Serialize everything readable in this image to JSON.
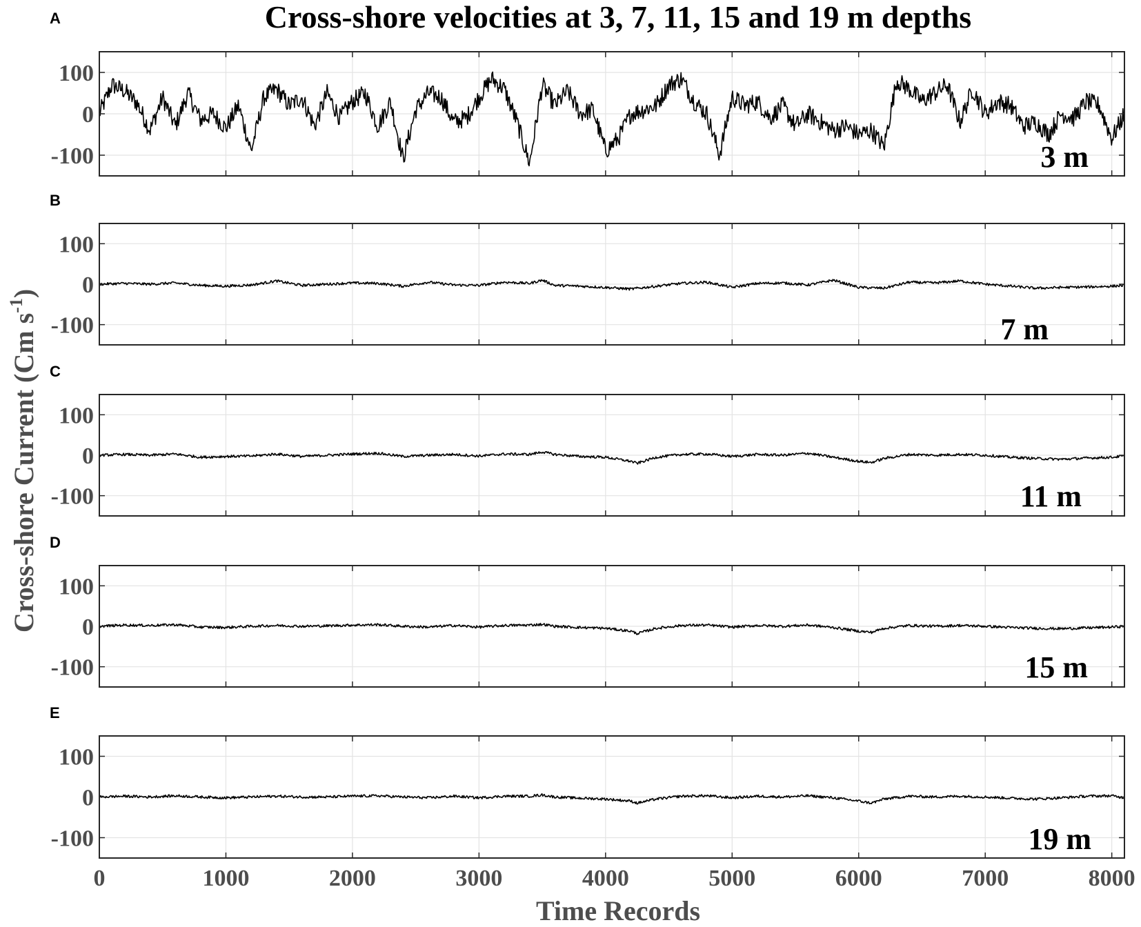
{
  "figure": {
    "title": "Cross-shore velocities at 3, 7, 11, 15 and 19 m depths",
    "ylabel": "Cross-shore Current (Cm s",
    "ylabel_sup": "-1",
    "ylabel_close": ")",
    "xlabel": "Time Records"
  },
  "chart_data": [
    {
      "type": "line",
      "panel": "A",
      "depth_label": "3 m",
      "xlim": [
        0,
        8100
      ],
      "ylim": [
        -150,
        150
      ],
      "xticks": [
        0,
        1000,
        2000,
        3000,
        4000,
        5000,
        6000,
        7000,
        8000
      ],
      "yticks": [
        100,
        0,
        -100
      ],
      "grid": true,
      "series": [
        {
          "x": [
            0,
            100,
            200,
            300,
            400,
            500,
            600,
            700,
            800,
            900,
            1000,
            1100,
            1200,
            1300,
            1400,
            1500,
            1600,
            1700,
            1800,
            1900,
            2000,
            2100,
            2200,
            2300,
            2400,
            2500,
            2600,
            2700,
            2800,
            2900,
            3000,
            3100,
            3200,
            3300,
            3400,
            3500,
            3600,
            3700,
            3800,
            3900,
            4000,
            4100,
            4200,
            4300,
            4400,
            4500,
            4600,
            4700,
            4800,
            4900,
            5000,
            5100,
            5200,
            5300,
            5400,
            5500,
            5600,
            5700,
            5800,
            5900,
            6000,
            6100,
            6200,
            6300,
            6400,
            6500,
            6600,
            6700,
            6800,
            6900,
            7000,
            7100,
            7200,
            7300,
            7400,
            7500,
            7600,
            7700,
            7800,
            7900,
            8000,
            8100
          ],
          "y": [
            0,
            70,
            55,
            25,
            -40,
            40,
            -30,
            50,
            -15,
            0,
            -35,
            20,
            -90,
            40,
            60,
            20,
            40,
            -30,
            50,
            -10,
            30,
            50,
            -30,
            30,
            -110,
            10,
            50,
            40,
            -20,
            -10,
            40,
            85,
            60,
            -20,
            -120,
            70,
            20,
            55,
            0,
            10,
            -90,
            -60,
            0,
            10,
            20,
            70,
            85,
            30,
            0,
            -100,
            40,
            20,
            30,
            -10,
            20,
            -30,
            0,
            -20,
            -40,
            -30,
            -50,
            -40,
            -80,
            80,
            60,
            30,
            50,
            70,
            -20,
            60,
            0,
            30,
            20,
            -30,
            -20,
            -50,
            0,
            -10,
            30,
            20,
            -60,
            0
          ]
        }
      ]
    },
    {
      "type": "line",
      "panel": "B",
      "depth_label": "7 m",
      "xlim": [
        0,
        8100
      ],
      "ylim": [
        -150,
        150
      ],
      "xticks": [
        0,
        1000,
        2000,
        3000,
        4000,
        5000,
        6000,
        7000,
        8000
      ],
      "yticks": [
        100,
        0,
        -100
      ],
      "grid": true,
      "series": [
        {
          "x": [
            0,
            200,
            400,
            600,
            800,
            1000,
            1200,
            1400,
            1600,
            1800,
            2000,
            2200,
            2400,
            2600,
            2800,
            3000,
            3200,
            3400,
            3500,
            3600,
            3800,
            4000,
            4200,
            4400,
            4600,
            4800,
            5000,
            5200,
            5400,
            5600,
            5800,
            6000,
            6200,
            6400,
            6600,
            6800,
            7000,
            7200,
            7400,
            7600,
            7800,
            8000,
            8100
          ],
          "y": [
            0,
            2,
            0,
            3,
            -3,
            -5,
            -2,
            8,
            -3,
            0,
            3,
            2,
            -5,
            5,
            -2,
            -3,
            5,
            2,
            10,
            -3,
            -5,
            -8,
            -12,
            -5,
            2,
            5,
            -8,
            2,
            3,
            -2,
            10,
            -8,
            -10,
            5,
            3,
            8,
            0,
            -5,
            -10,
            -8,
            -7,
            -5,
            -3
          ]
        }
      ]
    },
    {
      "type": "line",
      "panel": "C",
      "depth_label": "11 m",
      "xlim": [
        0,
        8100
      ],
      "ylim": [
        -150,
        150
      ],
      "xticks": [
        0,
        1000,
        2000,
        3000,
        4000,
        5000,
        6000,
        7000,
        8000
      ],
      "yticks": [
        100,
        0,
        -100
      ],
      "grid": true,
      "series": [
        {
          "x": [
            0,
            200,
            400,
            600,
            800,
            1000,
            1200,
            1400,
            1600,
            1800,
            2000,
            2200,
            2400,
            2600,
            2800,
            3000,
            3200,
            3400,
            3500,
            3600,
            3800,
            4000,
            4200,
            4250,
            4400,
            4600,
            4800,
            5000,
            5200,
            5400,
            5600,
            5800,
            6000,
            6100,
            6200,
            6400,
            6600,
            6800,
            7000,
            7200,
            7400,
            7600,
            7800,
            8000,
            8100
          ],
          "y": [
            0,
            2,
            0,
            3,
            -5,
            -3,
            -2,
            3,
            -3,
            0,
            3,
            5,
            -3,
            0,
            2,
            -2,
            3,
            2,
            8,
            2,
            -3,
            -5,
            -15,
            -20,
            -5,
            2,
            3,
            -3,
            2,
            0,
            5,
            -5,
            -15,
            -18,
            -8,
            2,
            0,
            2,
            0,
            -5,
            -8,
            -10,
            -7,
            -5,
            -2
          ]
        }
      ]
    },
    {
      "type": "line",
      "panel": "D",
      "depth_label": "15 m",
      "xlim": [
        0,
        8100
      ],
      "ylim": [
        -150,
        150
      ],
      "xticks": [
        0,
        1000,
        2000,
        3000,
        4000,
        5000,
        6000,
        7000,
        8000
      ],
      "yticks": [
        100,
        0,
        -100
      ],
      "grid": true,
      "series": [
        {
          "x": [
            0,
            200,
            400,
            600,
            800,
            1000,
            1200,
            1400,
            1600,
            1800,
            2000,
            2200,
            2400,
            2600,
            2800,
            3000,
            3200,
            3400,
            3500,
            3600,
            3800,
            4000,
            4200,
            4250,
            4400,
            4600,
            4800,
            5000,
            5200,
            5400,
            5600,
            5800,
            6000,
            6100,
            6200,
            6400,
            6600,
            6800,
            7000,
            7200,
            7400,
            7600,
            7800,
            8000,
            8100
          ],
          "y": [
            0,
            3,
            2,
            4,
            -2,
            -3,
            0,
            2,
            0,
            1,
            3,
            4,
            0,
            -2,
            2,
            -2,
            2,
            3,
            5,
            0,
            -3,
            -5,
            -12,
            -18,
            -5,
            2,
            3,
            -2,
            2,
            0,
            3,
            -3,
            -12,
            -15,
            -5,
            2,
            0,
            2,
            0,
            -3,
            -5,
            -6,
            -4,
            -2,
            0
          ]
        }
      ]
    },
    {
      "type": "line",
      "panel": "E",
      "depth_label": "19 m",
      "xlim": [
        0,
        8100
      ],
      "ylim": [
        -150,
        150
      ],
      "xticks": [
        0,
        1000,
        2000,
        3000,
        4000,
        5000,
        6000,
        7000,
        8000
      ],
      "yticks": [
        100,
        0,
        -100
      ],
      "grid": true,
      "series": [
        {
          "x": [
            0,
            200,
            400,
            600,
            800,
            1000,
            1200,
            1400,
            1600,
            1800,
            2000,
            2200,
            2400,
            2600,
            2800,
            3000,
            3200,
            3400,
            3500,
            3600,
            3800,
            4000,
            4200,
            4250,
            4400,
            4600,
            4800,
            5000,
            5200,
            5400,
            5600,
            5800,
            6000,
            6100,
            6200,
            6400,
            6600,
            6800,
            7000,
            7200,
            7400,
            7600,
            7800,
            8000,
            8100
          ],
          "y": [
            0,
            2,
            0,
            3,
            0,
            -2,
            0,
            2,
            0,
            0,
            2,
            3,
            0,
            -2,
            2,
            -2,
            2,
            2,
            5,
            0,
            -3,
            -5,
            -10,
            -15,
            -5,
            2,
            3,
            -2,
            2,
            0,
            3,
            -2,
            -10,
            -15,
            -5,
            2,
            0,
            2,
            0,
            -3,
            -5,
            -2,
            2,
            3,
            -2
          ]
        }
      ]
    }
  ]
}
